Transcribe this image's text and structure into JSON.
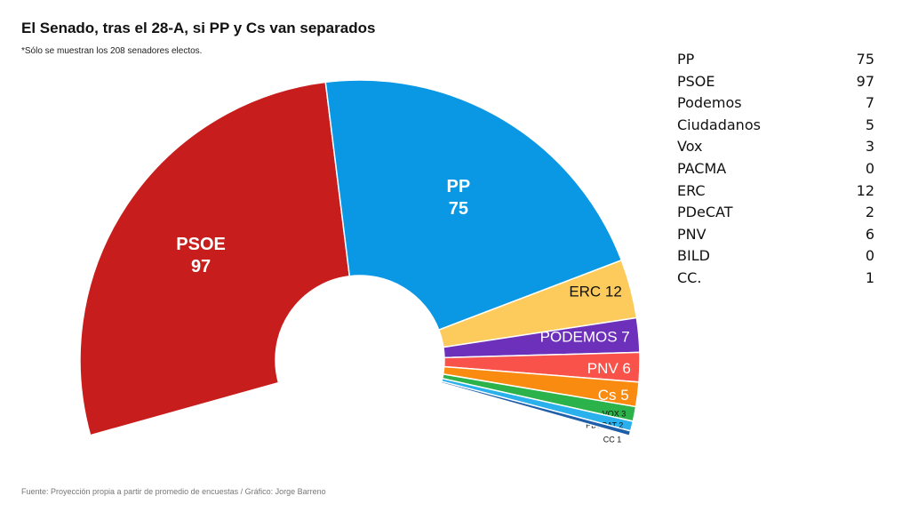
{
  "title": "El Senado, tras el 28-A, si PP y Cs van separados",
  "subtitle": "*Sólo se muestran los 208 senadores electos.",
  "footer": "Fuente: Proyección propia a partir de promedio de encuestas / Gráfico: Jorge Barreno",
  "chart_data": {
    "type": "pie",
    "variant": "semicircle-donut",
    "total": 208,
    "series": [
      {
        "label": "PSOE",
        "value": 97,
        "color": "#c71e1d"
      },
      {
        "label": "PP",
        "value": 75,
        "color": "#0a97e4"
      },
      {
        "label": "ERC",
        "value": 12,
        "color": "#fdcb5c"
      },
      {
        "label": "PODEMOS",
        "value": 7,
        "color": "#6d30bb"
      },
      {
        "label": "PNV",
        "value": 6,
        "color": "#f9524b"
      },
      {
        "label": "Cs",
        "value": 5,
        "color": "#f98b10"
      },
      {
        "label": "VOX",
        "value": 3,
        "color": "#2bb24a"
      },
      {
        "label": "PDeCAT",
        "value": 2,
        "color": "#2ab0ec"
      },
      {
        "label": "CC",
        "value": 1,
        "color": "#1f5ea8"
      }
    ]
  },
  "table": [
    {
      "party": "PP",
      "seats": "75"
    },
    {
      "party": "PSOE",
      "seats": "97"
    },
    {
      "party": "Podemos",
      "seats": "7"
    },
    {
      "party": "Ciudadanos",
      "seats": "5"
    },
    {
      "party": "Vox",
      "seats": "3"
    },
    {
      "party": "PACMA",
      "seats": "0"
    },
    {
      "party": "ERC",
      "seats": "12"
    },
    {
      "party": "PDeCAT",
      "seats": "2"
    },
    {
      "party": "PNV",
      "seats": "6"
    },
    {
      "party": "BILD",
      "seats": "0"
    },
    {
      "party": "CC.",
      "seats": "1"
    }
  ]
}
